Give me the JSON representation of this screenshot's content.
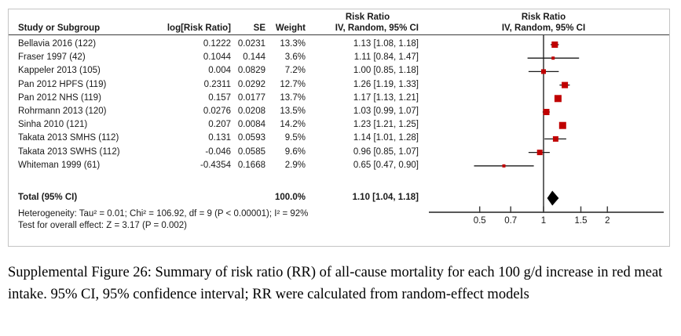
{
  "figure": {
    "headers": {
      "study": "Study or Subgroup",
      "log_rr": "log[Risk Ratio]",
      "se": "SE",
      "weight": "Weight",
      "effect_line1": "Risk Ratio",
      "effect_line2": "IV, Random, 95% CI",
      "plot_line1": "Risk Ratio",
      "plot_line2": "IV, Random, 95% CI"
    }
  },
  "chart_data": {
    "type": "forest",
    "effect_measure": "Risk Ratio",
    "model": "IV, Random, 95% CI",
    "x_scale": "log",
    "axis_ticks": [
      0.5,
      0.7,
      1,
      1.5,
      2
    ],
    "axis_tick_labels": [
      "0.5",
      "0.7",
      "1",
      "1.5",
      "2"
    ],
    "marker_color": "#c00000",
    "line_color": "#1a1a1a",
    "axis_color": "#404040",
    "studies": [
      {
        "name": "Bellavia 2016 (122)",
        "log_rr": "0.1222",
        "se": "0.0231",
        "weight": "13.3%",
        "weight_pct": 13.3,
        "rr": 1.13,
        "ci_low": 1.08,
        "ci_high": 1.18,
        "ci_text": "1.13 [1.08, 1.18]"
      },
      {
        "name": "Fraser 1997 (42)",
        "log_rr": "0.1044",
        "se": "0.144",
        "weight": "3.6%",
        "weight_pct": 3.6,
        "rr": 1.11,
        "ci_low": 0.84,
        "ci_high": 1.47,
        "ci_text": "1.11 [0.84, 1.47]"
      },
      {
        "name": "Kappeler 2013 (105)",
        "log_rr": "0.004",
        "se": "0.0829",
        "weight": "7.2%",
        "weight_pct": 7.2,
        "rr": 1.0,
        "ci_low": 0.85,
        "ci_high": 1.18,
        "ci_text": "1.00 [0.85, 1.18]"
      },
      {
        "name": "Pan 2012 HPFS (119)",
        "log_rr": "0.2311",
        "se": "0.0292",
        "weight": "12.7%",
        "weight_pct": 12.7,
        "rr": 1.26,
        "ci_low": 1.19,
        "ci_high": 1.33,
        "ci_text": "1.26 [1.19, 1.33]"
      },
      {
        "name": "Pan 2012 NHS (119)",
        "log_rr": "0.157",
        "se": "0.0177",
        "weight": "13.7%",
        "weight_pct": 13.7,
        "rr": 1.17,
        "ci_low": 1.13,
        "ci_high": 1.21,
        "ci_text": "1.17 [1.13, 1.21]"
      },
      {
        "name": "Rohrmann 2013 (120)",
        "log_rr": "0.0276",
        "se": "0.0208",
        "weight": "13.5%",
        "weight_pct": 13.5,
        "rr": 1.03,
        "ci_low": 0.99,
        "ci_high": 1.07,
        "ci_text": "1.03 [0.99, 1.07]"
      },
      {
        "name": "Sinha 2010 (121)",
        "log_rr": "0.207",
        "se": "0.0084",
        "weight": "14.2%",
        "weight_pct": 14.2,
        "rr": 1.23,
        "ci_low": 1.21,
        "ci_high": 1.25,
        "ci_text": "1.23 [1.21, 1.25]"
      },
      {
        "name": "Takata 2013 SMHS (112)",
        "log_rr": "0.131",
        "se": "0.0593",
        "weight": "9.5%",
        "weight_pct": 9.5,
        "rr": 1.14,
        "ci_low": 1.01,
        "ci_high": 1.28,
        "ci_text": "1.14 [1.01, 1.28]"
      },
      {
        "name": "Takata 2013 SWHS (112)",
        "log_rr": "-0.046",
        "se": "0.0585",
        "weight": "9.6%",
        "weight_pct": 9.6,
        "rr": 0.96,
        "ci_low": 0.85,
        "ci_high": 1.07,
        "ci_text": "0.96 [0.85, 1.07]"
      },
      {
        "name": "Whiteman 1999 (61)",
        "log_rr": "-0.4354",
        "se": "0.1668",
        "weight": "2.9%",
        "weight_pct": 2.9,
        "rr": 0.65,
        "ci_low": 0.47,
        "ci_high": 0.9,
        "ci_text": "0.65 [0.47, 0.90]"
      }
    ],
    "total": {
      "label": "Total (95% CI)",
      "weight": "100.0%",
      "rr": 1.1,
      "ci_low": 1.04,
      "ci_high": 1.18,
      "ci_text": "1.10 [1.04, 1.18]"
    },
    "heterogeneity": "Heterogeneity: Tau² = 0.01; Chi² = 106.92, df = 9 (P < 0.00001); I² = 92%",
    "overall_effect": "Test for overall effect: Z = 3.17 (P = 0.002)"
  },
  "caption": "Supplemental Figure 26: Summary of risk ratio (RR) of all-cause mortality for each 100 g/d increase in red meat intake. 95% CI, 95% confidence interval; RR were calculated from random-effect models"
}
